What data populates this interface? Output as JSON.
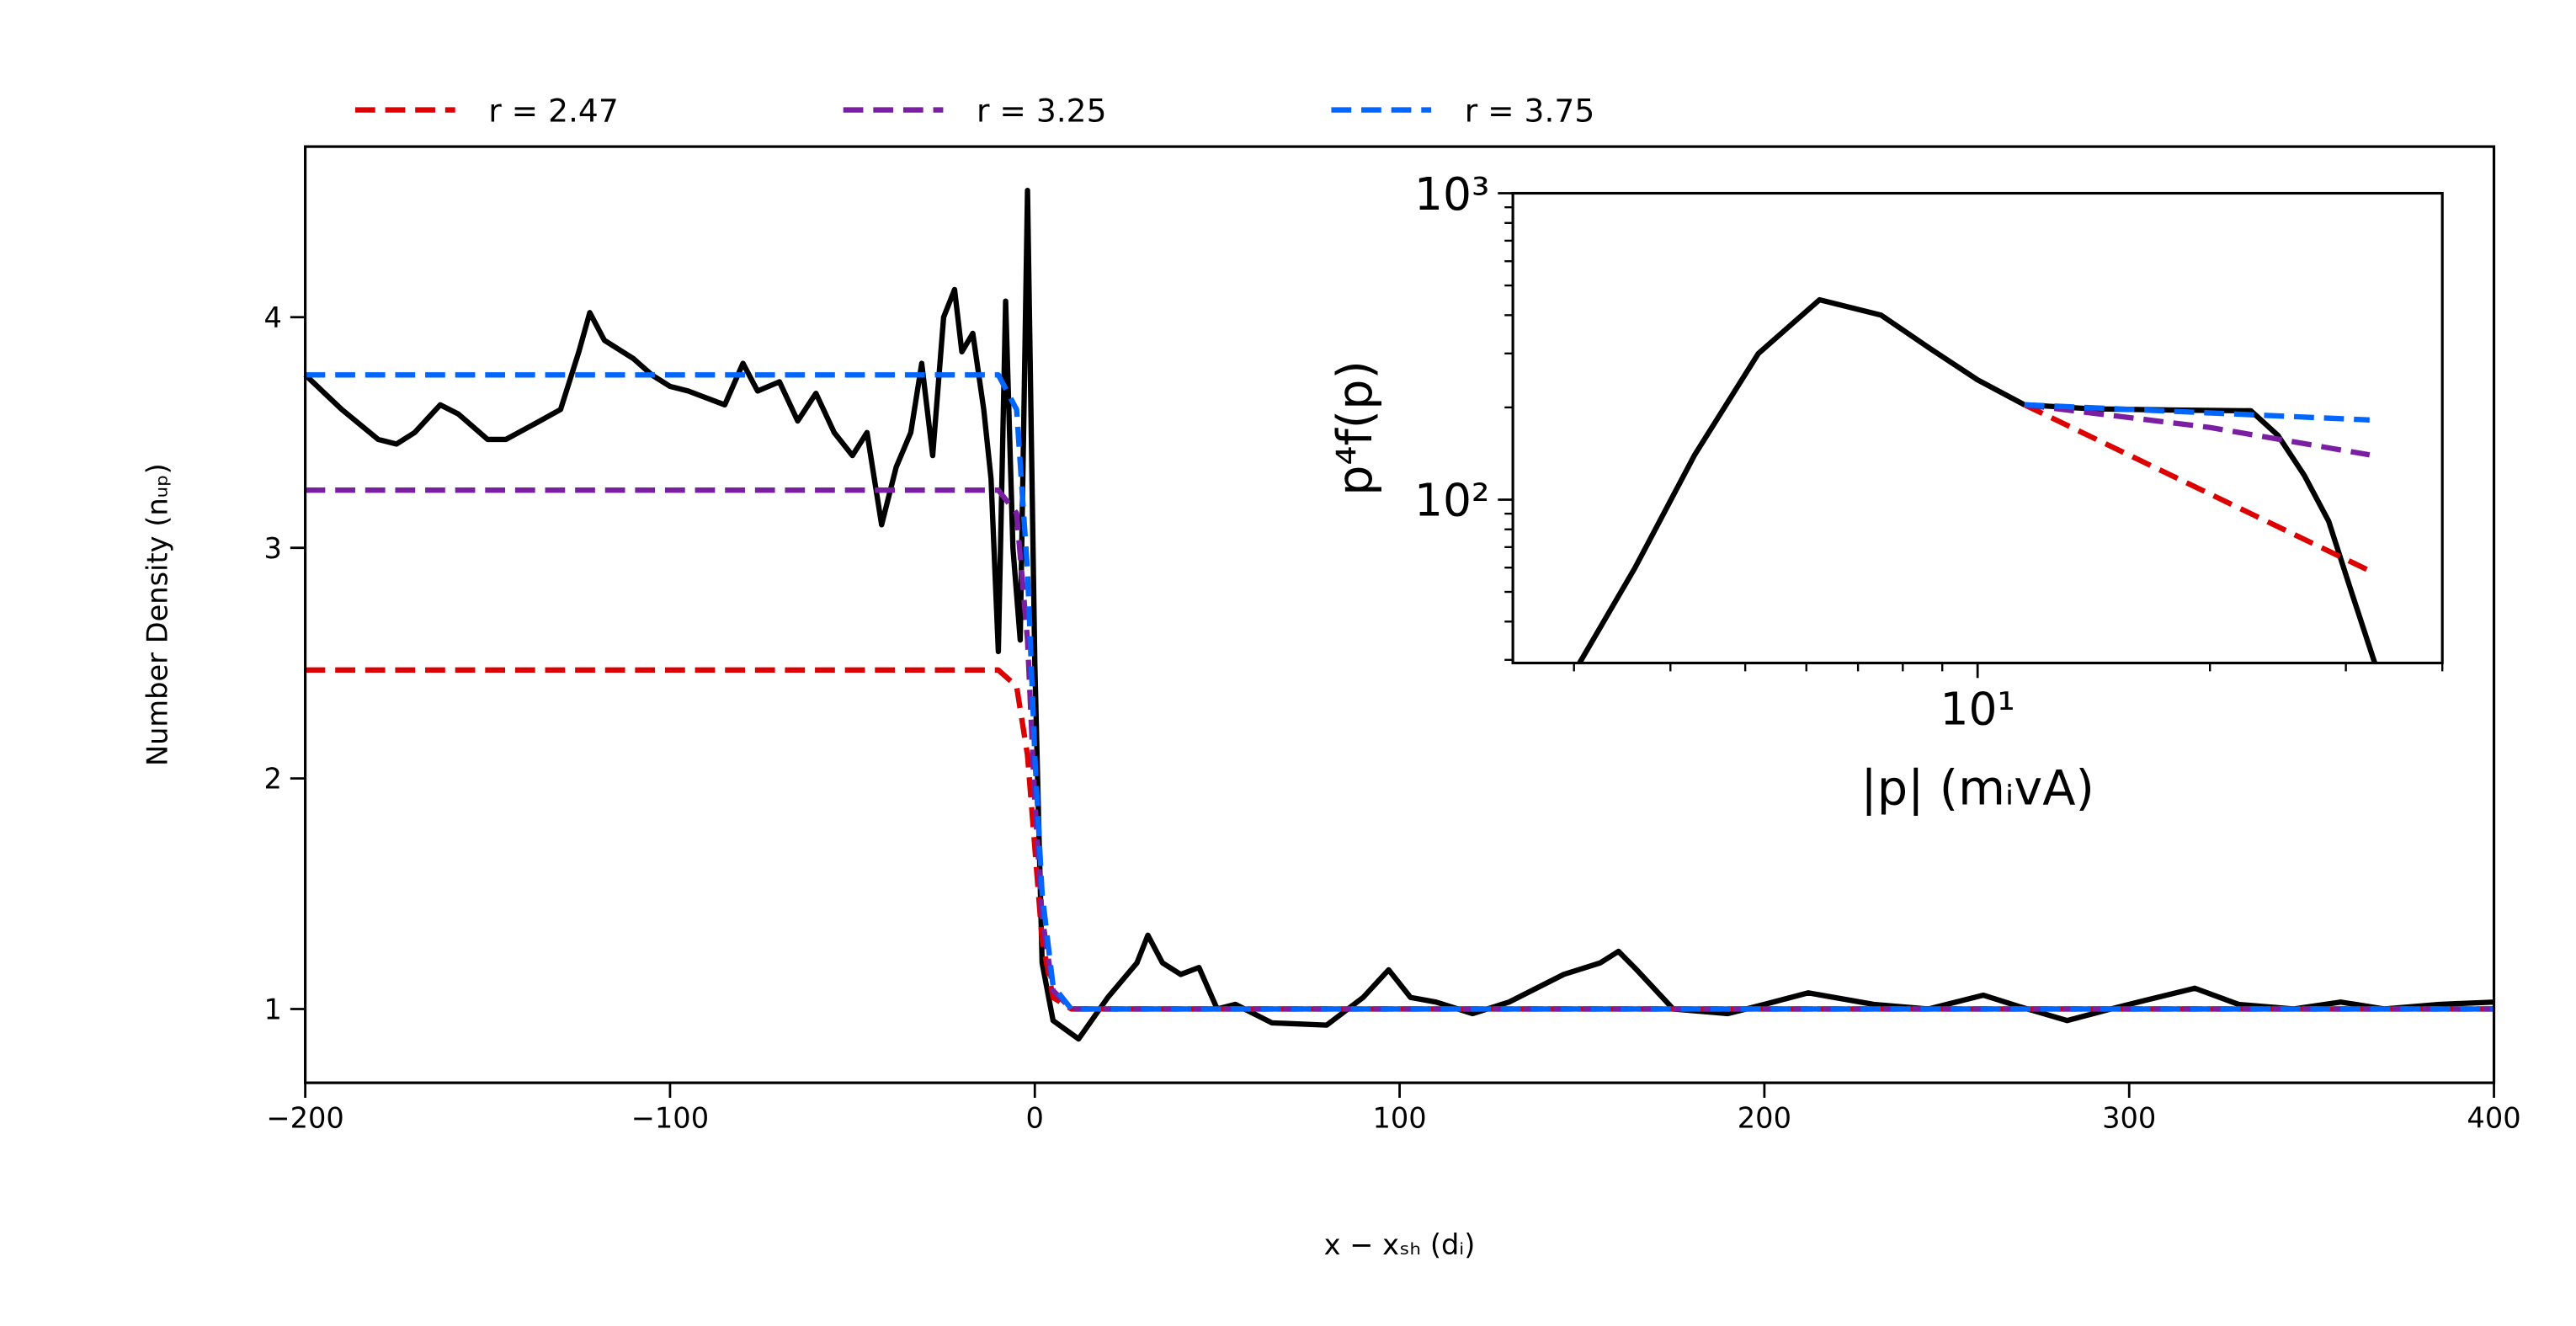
{
  "chart_data": [
    {
      "type": "line",
      "xlabel": "x − xₛₕ (dᵢ)",
      "ylabel": "Number Density (nᵤₚ)",
      "xlim": [
        -200,
        400
      ],
      "ylim": [
        0.68,
        4.74
      ],
      "xticks": [
        {
          "value": -200,
          "label": "−200"
        },
        {
          "value": -100,
          "label": "−100"
        },
        0,
        100,
        200,
        300,
        400
      ],
      "yticks": [
        1,
        2,
        3,
        4
      ],
      "legend": "top outside",
      "series": [
        {
          "color": "#000000",
          "dashed": false,
          "x": [
            -200,
            -190,
            -180,
            -175,
            -170,
            -163,
            -158,
            -150,
            -145,
            -138,
            -130,
            -125,
            -122,
            -118,
            -110,
            -105,
            -100,
            -95,
            -90,
            -85,
            -80,
            -76,
            -70,
            -65,
            -60,
            -55,
            -50,
            -46,
            -44,
            -42,
            -38,
            -34,
            -31,
            -28,
            -25,
            -22,
            -20,
            -17,
            -14,
            -12,
            -10,
            -8,
            -6,
            -4,
            -2,
            0,
            2,
            5,
            12,
            20,
            28,
            31,
            35,
            40,
            45,
            50,
            55,
            65,
            80,
            90,
            97,
            103,
            110,
            120,
            130,
            145,
            155,
            160,
            165,
            175,
            190,
            200,
            212,
            230,
            245,
            260,
            270,
            283,
            295,
            305,
            318,
            330,
            345,
            358,
            370,
            385,
            400
          ],
          "values": [
            3.75,
            3.6,
            3.47,
            3.45,
            3.5,
            3.62,
            3.58,
            3.47,
            3.47,
            3.53,
            3.6,
            3.85,
            4.02,
            3.9,
            3.82,
            3.75,
            3.7,
            3.68,
            3.65,
            3.62,
            3.8,
            3.68,
            3.72,
            3.55,
            3.67,
            3.5,
            3.4,
            3.5,
            3.3,
            3.1,
            3.35,
            3.5,
            3.8,
            3.4,
            4.0,
            4.12,
            3.85,
            3.93,
            3.6,
            3.3,
            2.55,
            4.07,
            3.0,
            2.6,
            4.55,
            2.5,
            1.2,
            0.95,
            0.87,
            1.05,
            1.2,
            1.32,
            1.2,
            1.15,
            1.18,
            1.0,
            1.02,
            0.94,
            0.93,
            1.05,
            1.17,
            1.05,
            1.03,
            0.98,
            1.03,
            1.15,
            1.2,
            1.25,
            1.17,
            1.0,
            0.98,
            1.02,
            1.07,
            1.02,
            1.0,
            1.06,
            1.01,
            0.95,
            1.0,
            1.04,
            1.09,
            1.02,
            1.0,
            1.03,
            1.0,
            1.02,
            1.03
          ]
        },
        {
          "name": "r = 2.47",
          "color": "#dd0000",
          "dashed": true,
          "x": [
            -200,
            -10,
            -5,
            -2,
            0,
            2,
            5,
            10,
            400
          ],
          "values": [
            2.47,
            2.47,
            2.4,
            2.1,
            1.7,
            1.3,
            1.05,
            1.0,
            1.0
          ]
        },
        {
          "name": "r = 3.25",
          "color": "#7b1fa2",
          "dashed": true,
          "x": [
            -200,
            -10,
            -5,
            -2,
            0,
            2,
            5,
            10,
            400
          ],
          "values": [
            3.25,
            3.25,
            3.15,
            2.6,
            1.9,
            1.4,
            1.08,
            1.0,
            1.0
          ]
        },
        {
          "name": "r = 3.75",
          "color": "#0066ff",
          "dashed": true,
          "x": [
            -200,
            -10,
            -5,
            -2,
            0,
            2,
            5,
            10,
            400
          ],
          "values": [
            3.75,
            3.75,
            3.6,
            2.9,
            2.1,
            1.5,
            1.1,
            1.0,
            1.0
          ]
        }
      ]
    },
    {
      "type": "line",
      "xlabel": "|p| (mᵢvA)",
      "ylabel": "p⁴f(p)",
      "xlog": true,
      "ylog": true,
      "xlim": [
        2.5,
        40
      ],
      "ylim": [
        29.3,
        1000
      ],
      "xticks": [
        {
          "value": 10,
          "label": "10¹"
        }
      ],
      "yticks": [
        {
          "value": 100,
          "label": "10²"
        },
        {
          "value": 1000,
          "label": "10³"
        }
      ],
      "series": [
        {
          "color": "#000000",
          "dashed": false,
          "x": [
            3.05,
            3.6,
            4.3,
            5.2,
            6.24,
            7.5,
            8.7,
            10,
            11.5,
            14,
            18,
            22.6,
            24.5,
            26.5,
            28.5,
            30.5,
            32.7
          ],
          "values": [
            29.3,
            60,
            140,
            300,
            449,
            400,
            310,
            246,
            204,
            198,
            196,
            195,
            162,
            120,
            85,
            50,
            29.3
          ]
        },
        {
          "color": "#dd0000",
          "dashed": true,
          "x": [
            11.5,
            32.2
          ],
          "values": [
            204,
            58.6
          ]
        },
        {
          "color": "#7b1fa2",
          "dashed": true,
          "x": [
            11.5,
            20,
            32.2
          ],
          "values": [
            204,
            172,
            140
          ]
        },
        {
          "color": "#0066ff",
          "dashed": true,
          "x": [
            11.5,
            32.2
          ],
          "values": [
            204,
            182
          ]
        }
      ]
    }
  ]
}
